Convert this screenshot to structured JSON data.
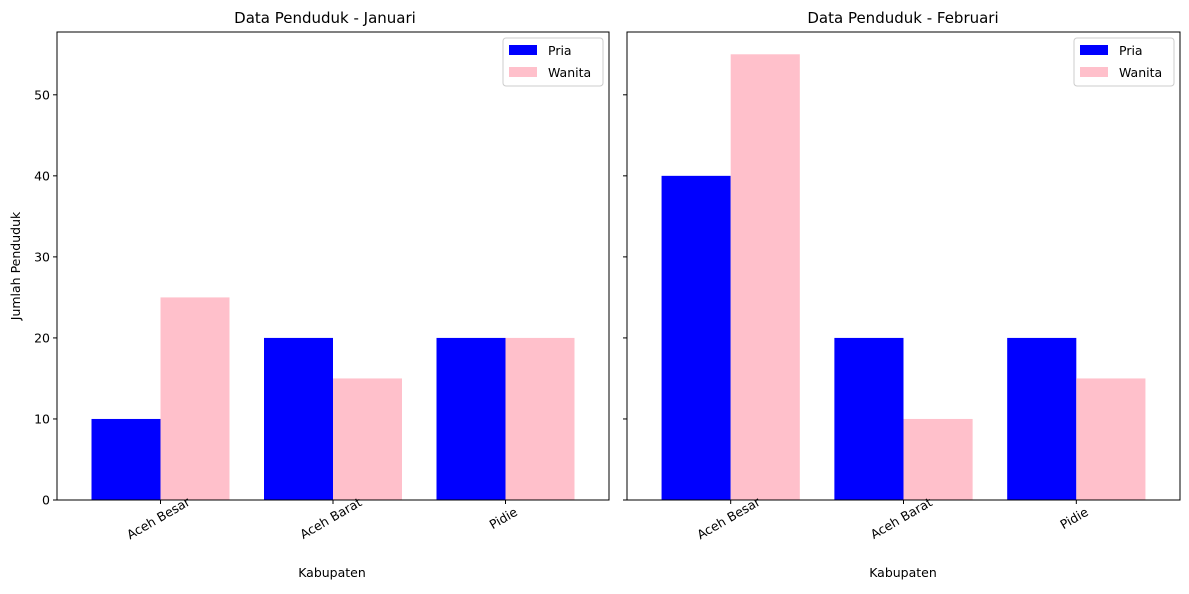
{
  "chart_data": [
    {
      "type": "bar",
      "title": "Data Penduduk - Januari",
      "xlabel": "Kabupaten",
      "ylabel": "Jumlah Penduduk",
      "categories": [
        "Aceh Besar",
        "Aceh Barat",
        "Pidie"
      ],
      "ylim": [
        0,
        57.75
      ],
      "yticks": [
        "0",
        "10",
        "20",
        "30",
        "40",
        "50"
      ],
      "show_ytick_labels": true,
      "legend_position": "top-right",
      "grid": false,
      "series": [
        {
          "name": "Pria",
          "color": "#0000ff",
          "values": [
            10,
            20,
            20
          ]
        },
        {
          "name": "Wanita",
          "color": "#ffc0cb",
          "values": [
            25,
            15,
            20
          ]
        }
      ]
    },
    {
      "type": "bar",
      "title": "Data Penduduk - Februari",
      "xlabel": "Kabupaten",
      "ylabel": "",
      "categories": [
        "Aceh Besar",
        "Aceh Barat",
        "Pidie"
      ],
      "ylim": [
        0,
        57.75
      ],
      "yticks": [
        "0",
        "10",
        "20",
        "30",
        "40",
        "50"
      ],
      "show_ytick_labels": false,
      "legend_position": "top-right",
      "grid": false,
      "series": [
        {
          "name": "Pria",
          "color": "#0000ff",
          "values": [
            40,
            20,
            20
          ]
        },
        {
          "name": "Wanita",
          "color": "#ffc0cb",
          "values": [
            55,
            10,
            15
          ]
        }
      ]
    }
  ]
}
